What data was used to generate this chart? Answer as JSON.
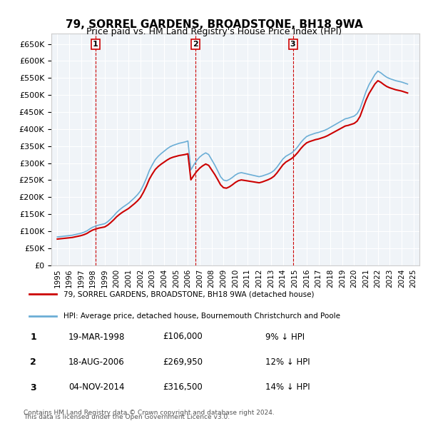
{
  "title": "79, SORREL GARDENS, BROADSTONE, BH18 9WA",
  "subtitle": "Price paid vs. HM Land Registry's House Price Index (HPI)",
  "ylabel": "",
  "background_color": "#ffffff",
  "plot_background": "#f0f4f8",
  "grid_color": "#ffffff",
  "price_paid": [
    {
      "date": 1998.21,
      "price": 106000,
      "label": "1"
    },
    {
      "date": 2006.63,
      "price": 269950,
      "label": "2"
    },
    {
      "date": 2014.84,
      "price": 316500,
      "label": "3"
    }
  ],
  "transactions": [
    {
      "label": "1",
      "date": "19-MAR-1998",
      "price": "£106,000",
      "pct": "9% ↓ HPI"
    },
    {
      "label": "2",
      "date": "18-AUG-2006",
      "price": "£269,950",
      "pct": "12% ↓ HPI"
    },
    {
      "label": "3",
      "date": "04-NOV-2014",
      "price": "£316,500",
      "pct": "14% ↓ HPI"
    }
  ],
  "legend_line1": "79, SORREL GARDENS, BROADSTONE, BH18 9WA (detached house)",
  "legend_line2": "HPI: Average price, detached house, Bournemouth Christchurch and Poole",
  "footer1": "Contains HM Land Registry data © Crown copyright and database right 2024.",
  "footer2": "This data is licensed under the Open Government Licence v3.0.",
  "hpi_color": "#6baed6",
  "price_color": "#cc0000",
  "ylim": [
    0,
    680000
  ],
  "yticks": [
    0,
    50000,
    100000,
    150000,
    200000,
    250000,
    300000,
    350000,
    400000,
    450000,
    500000,
    550000,
    600000,
    650000
  ],
  "xmin": 1994.5,
  "xmax": 2025.5,
  "xticks": [
    1995,
    1996,
    1997,
    1998,
    1999,
    2000,
    2001,
    2002,
    2003,
    2004,
    2005,
    2006,
    2007,
    2008,
    2009,
    2010,
    2011,
    2012,
    2013,
    2014,
    2015,
    2016,
    2017,
    2018,
    2019,
    2020,
    2021,
    2022,
    2023,
    2024,
    2025
  ]
}
